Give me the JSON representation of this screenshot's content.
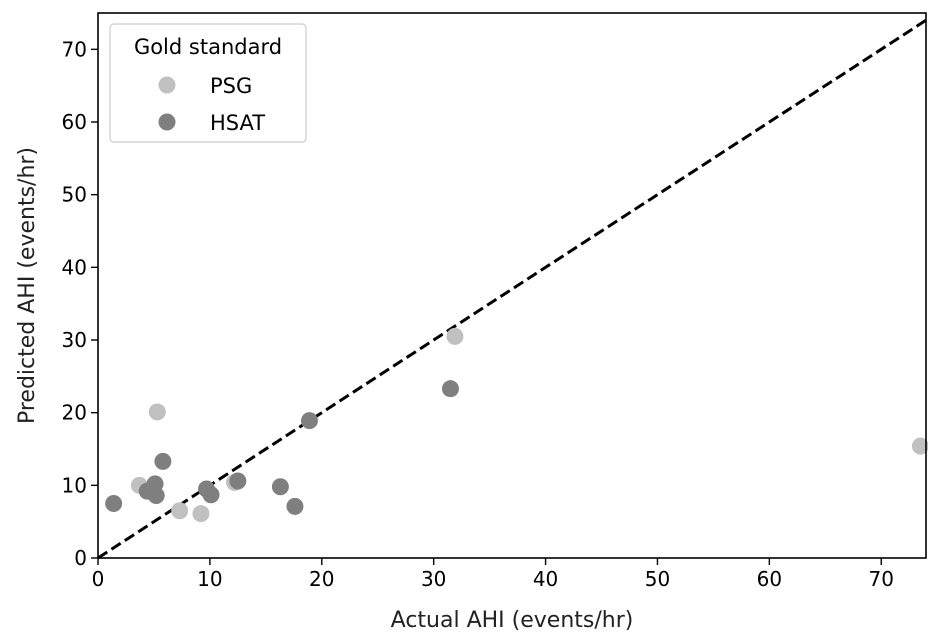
{
  "chart_data": {
    "type": "scatter",
    "xlabel": "Actual AHI (events/hr)",
    "ylabel": "Predicted AHI (events/hr)",
    "xlim": [
      0,
      74
    ],
    "ylim": [
      0,
      75
    ],
    "xticks": [
      0,
      10,
      20,
      30,
      40,
      50,
      60,
      70
    ],
    "yticks": [
      0,
      10,
      20,
      30,
      40,
      50,
      60,
      70
    ],
    "grid": false,
    "reference_line": {
      "style": "dashed",
      "color": "#000000",
      "x": [
        0,
        74
      ],
      "y": [
        0,
        74
      ]
    },
    "legend": {
      "title": "Gold standard",
      "placement": "top-left"
    },
    "series": [
      {
        "name": "PSG",
        "color": "#c0c0c0",
        "points": [
          {
            "x": 3.7,
            "y": 10.0
          },
          {
            "x": 5.3,
            "y": 20.1
          },
          {
            "x": 7.3,
            "y": 6.5
          },
          {
            "x": 9.2,
            "y": 6.1
          },
          {
            "x": 12.2,
            "y": 10.4
          },
          {
            "x": 31.9,
            "y": 30.5
          },
          {
            "x": 73.5,
            "y": 15.4
          }
        ]
      },
      {
        "name": "HSAT",
        "color": "#7f7f7f",
        "points": [
          {
            "x": 1.4,
            "y": 7.5
          },
          {
            "x": 4.4,
            "y": 9.2
          },
          {
            "x": 5.1,
            "y": 10.2
          },
          {
            "x": 5.2,
            "y": 8.6
          },
          {
            "x": 5.8,
            "y": 13.3
          },
          {
            "x": 9.7,
            "y": 9.5
          },
          {
            "x": 10.1,
            "y": 8.7
          },
          {
            "x": 12.5,
            "y": 10.6
          },
          {
            "x": 16.3,
            "y": 9.8
          },
          {
            "x": 17.6,
            "y": 7.1
          },
          {
            "x": 18.9,
            "y": 18.9
          },
          {
            "x": 31.5,
            "y": 23.3
          }
        ]
      }
    ]
  }
}
